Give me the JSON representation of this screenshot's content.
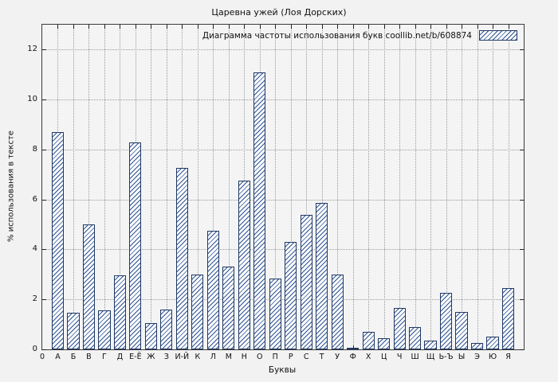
{
  "chart_data": {
    "type": "bar",
    "title": "Царевна ужей (Лоя Дорских)",
    "legend": "Диаграмма частоты использования букв coollib.net/b/608874",
    "xlabel": "Буквы",
    "ylabel": "% использования в тексте",
    "origin_label": "0",
    "categories": [
      "А",
      "Б",
      "В",
      "Г",
      "Д",
      "Е-Ё",
      "Ж",
      "З",
      "И-Й",
      "К",
      "Л",
      "М",
      "Н",
      "О",
      "П",
      "Р",
      "С",
      "Т",
      "У",
      "Ф",
      "Х",
      "Ц",
      "Ч",
      "Ш",
      "Щ",
      "Ь-Ъ",
      "Ы",
      "Э",
      "Ю",
      "Я"
    ],
    "values": [
      8.7,
      1.45,
      5.0,
      1.55,
      2.95,
      8.3,
      1.05,
      1.6,
      7.25,
      3.0,
      4.75,
      3.3,
      6.75,
      11.1,
      2.85,
      4.3,
      5.4,
      5.85,
      3.0,
      0.06,
      0.7,
      0.45,
      1.65,
      0.9,
      0.35,
      2.25,
      1.5,
      0.25,
      0.5,
      2.45
    ],
    "ylim": [
      0,
      13
    ],
    "yticks": [
      0,
      2,
      4,
      6,
      8,
      10,
      12
    ],
    "grid": true,
    "legend_position": "top-right",
    "bar_edge_color": "#1f3864",
    "bar_hatch_color": "#2f5597",
    "background_color": "#f2f2f2"
  }
}
